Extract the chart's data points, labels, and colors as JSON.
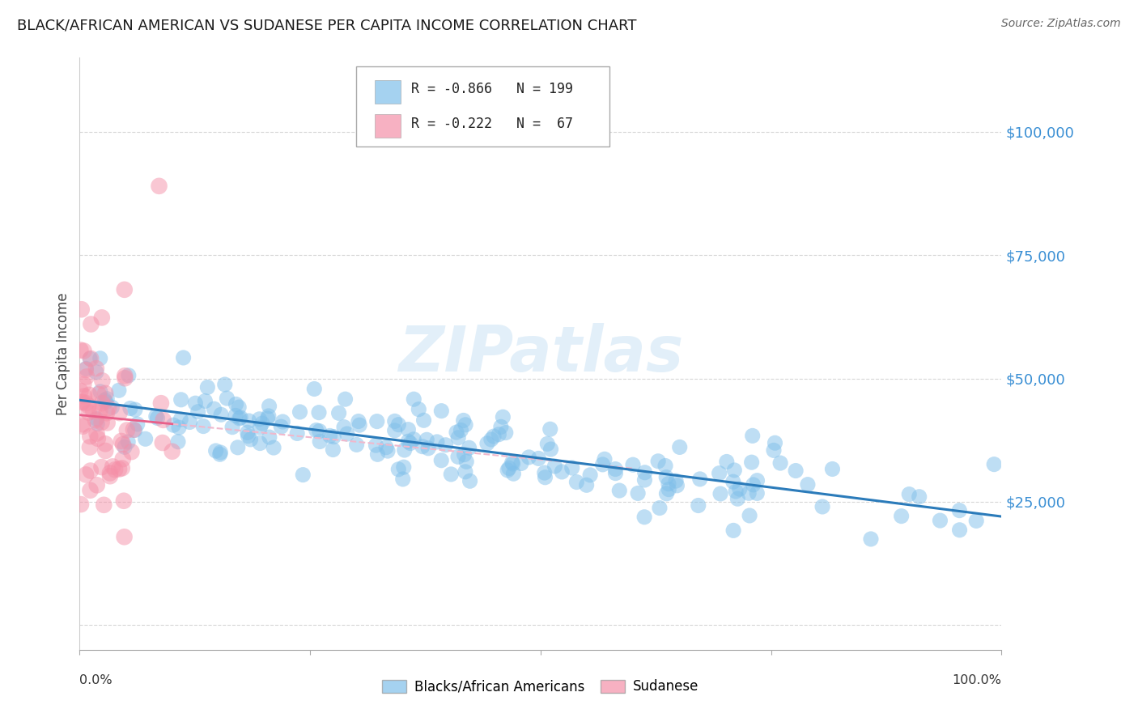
{
  "title": "BLACK/AFRICAN AMERICAN VS SUDANESE PER CAPITA INCOME CORRELATION CHART",
  "source": "Source: ZipAtlas.com",
  "ylabel": "Per Capita Income",
  "watermark": "ZIPatlas",
  "y_ticks": [
    0,
    25000,
    50000,
    75000,
    100000
  ],
  "y_tick_labels": [
    "",
    "$25,000",
    "$50,000",
    "$75,000",
    "$100,000"
  ],
  "ylim": [
    -5000,
    115000
  ],
  "xlim": [
    0.0,
    1.0
  ],
  "blue_R": "-0.866",
  "blue_N": "199",
  "pink_R": "-0.222",
  "pink_N": "67",
  "blue_color": "#7fbfea",
  "pink_color": "#f590a8",
  "blue_line_color": "#2b7bba",
  "pink_line_color": "#e8608a",
  "pink_line_dashed_color": "#f0b8cc",
  "title_color": "#1a1a1a",
  "source_color": "#666666",
  "axis_label_color": "#3a8fd4",
  "legend_label_blue": "Blacks/African Americans",
  "legend_label_pink": "Sudanese",
  "background_color": "#ffffff",
  "grid_color": "#cccccc"
}
